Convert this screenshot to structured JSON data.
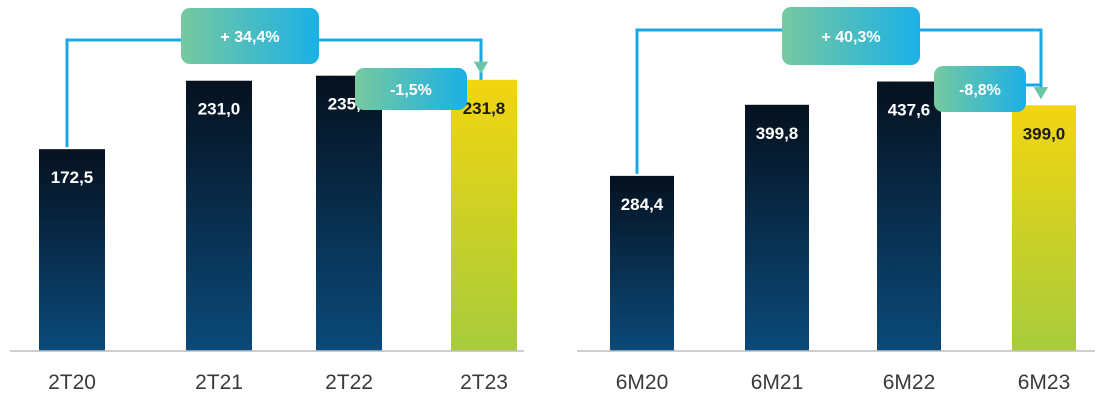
{
  "colors": {
    "bar_dark_top": "#05111f",
    "bar_dark_bottom": "#0b4a7a",
    "bar_highlight_top": "#f2d50f",
    "bar_highlight_bottom": "#a7cc3c",
    "connector": "#1aa9e0",
    "arrow": "#6cc6a4",
    "badge_left": "#77c9a0",
    "badge_right": "#1ab0e6",
    "axis": "#bdbdbd",
    "label_dark": "#ffffff",
    "label_highlight": "#1a1a1a"
  },
  "chart_data": [
    {
      "type": "bar",
      "categories": [
        "2T20",
        "2T21",
        "2T22",
        "2T23"
      ],
      "values": [
        172.5,
        231.0,
        235.3,
        231.8
      ],
      "value_labels": [
        "172,5",
        "231,0",
        "235,3",
        "231,8"
      ],
      "highlight_index": 3,
      "ylim": [
        0,
        300
      ],
      "grid": false,
      "annotations": [
        {
          "label": "+ 34,4%",
          "from": "2T20",
          "to": "2T23"
        },
        {
          "label": "-1,5%",
          "from": "2T22",
          "to": "2T23"
        }
      ]
    },
    {
      "type": "bar",
      "categories": [
        "6M20",
        "6M21",
        "6M22",
        "6M23"
      ],
      "values": [
        284.4,
        399.8,
        437.6,
        399.0
      ],
      "value_labels": [
        "284,4",
        "399,8",
        "437,6",
        "399,0"
      ],
      "highlight_index": 3,
      "ylim": [
        0,
        570
      ],
      "grid": false,
      "annotations": [
        {
          "label": "+ 40,3%",
          "from": "6M20",
          "to": "6M23"
        },
        {
          "label": "-8,8%",
          "from": "6M22",
          "to": "6M23"
        }
      ]
    }
  ]
}
